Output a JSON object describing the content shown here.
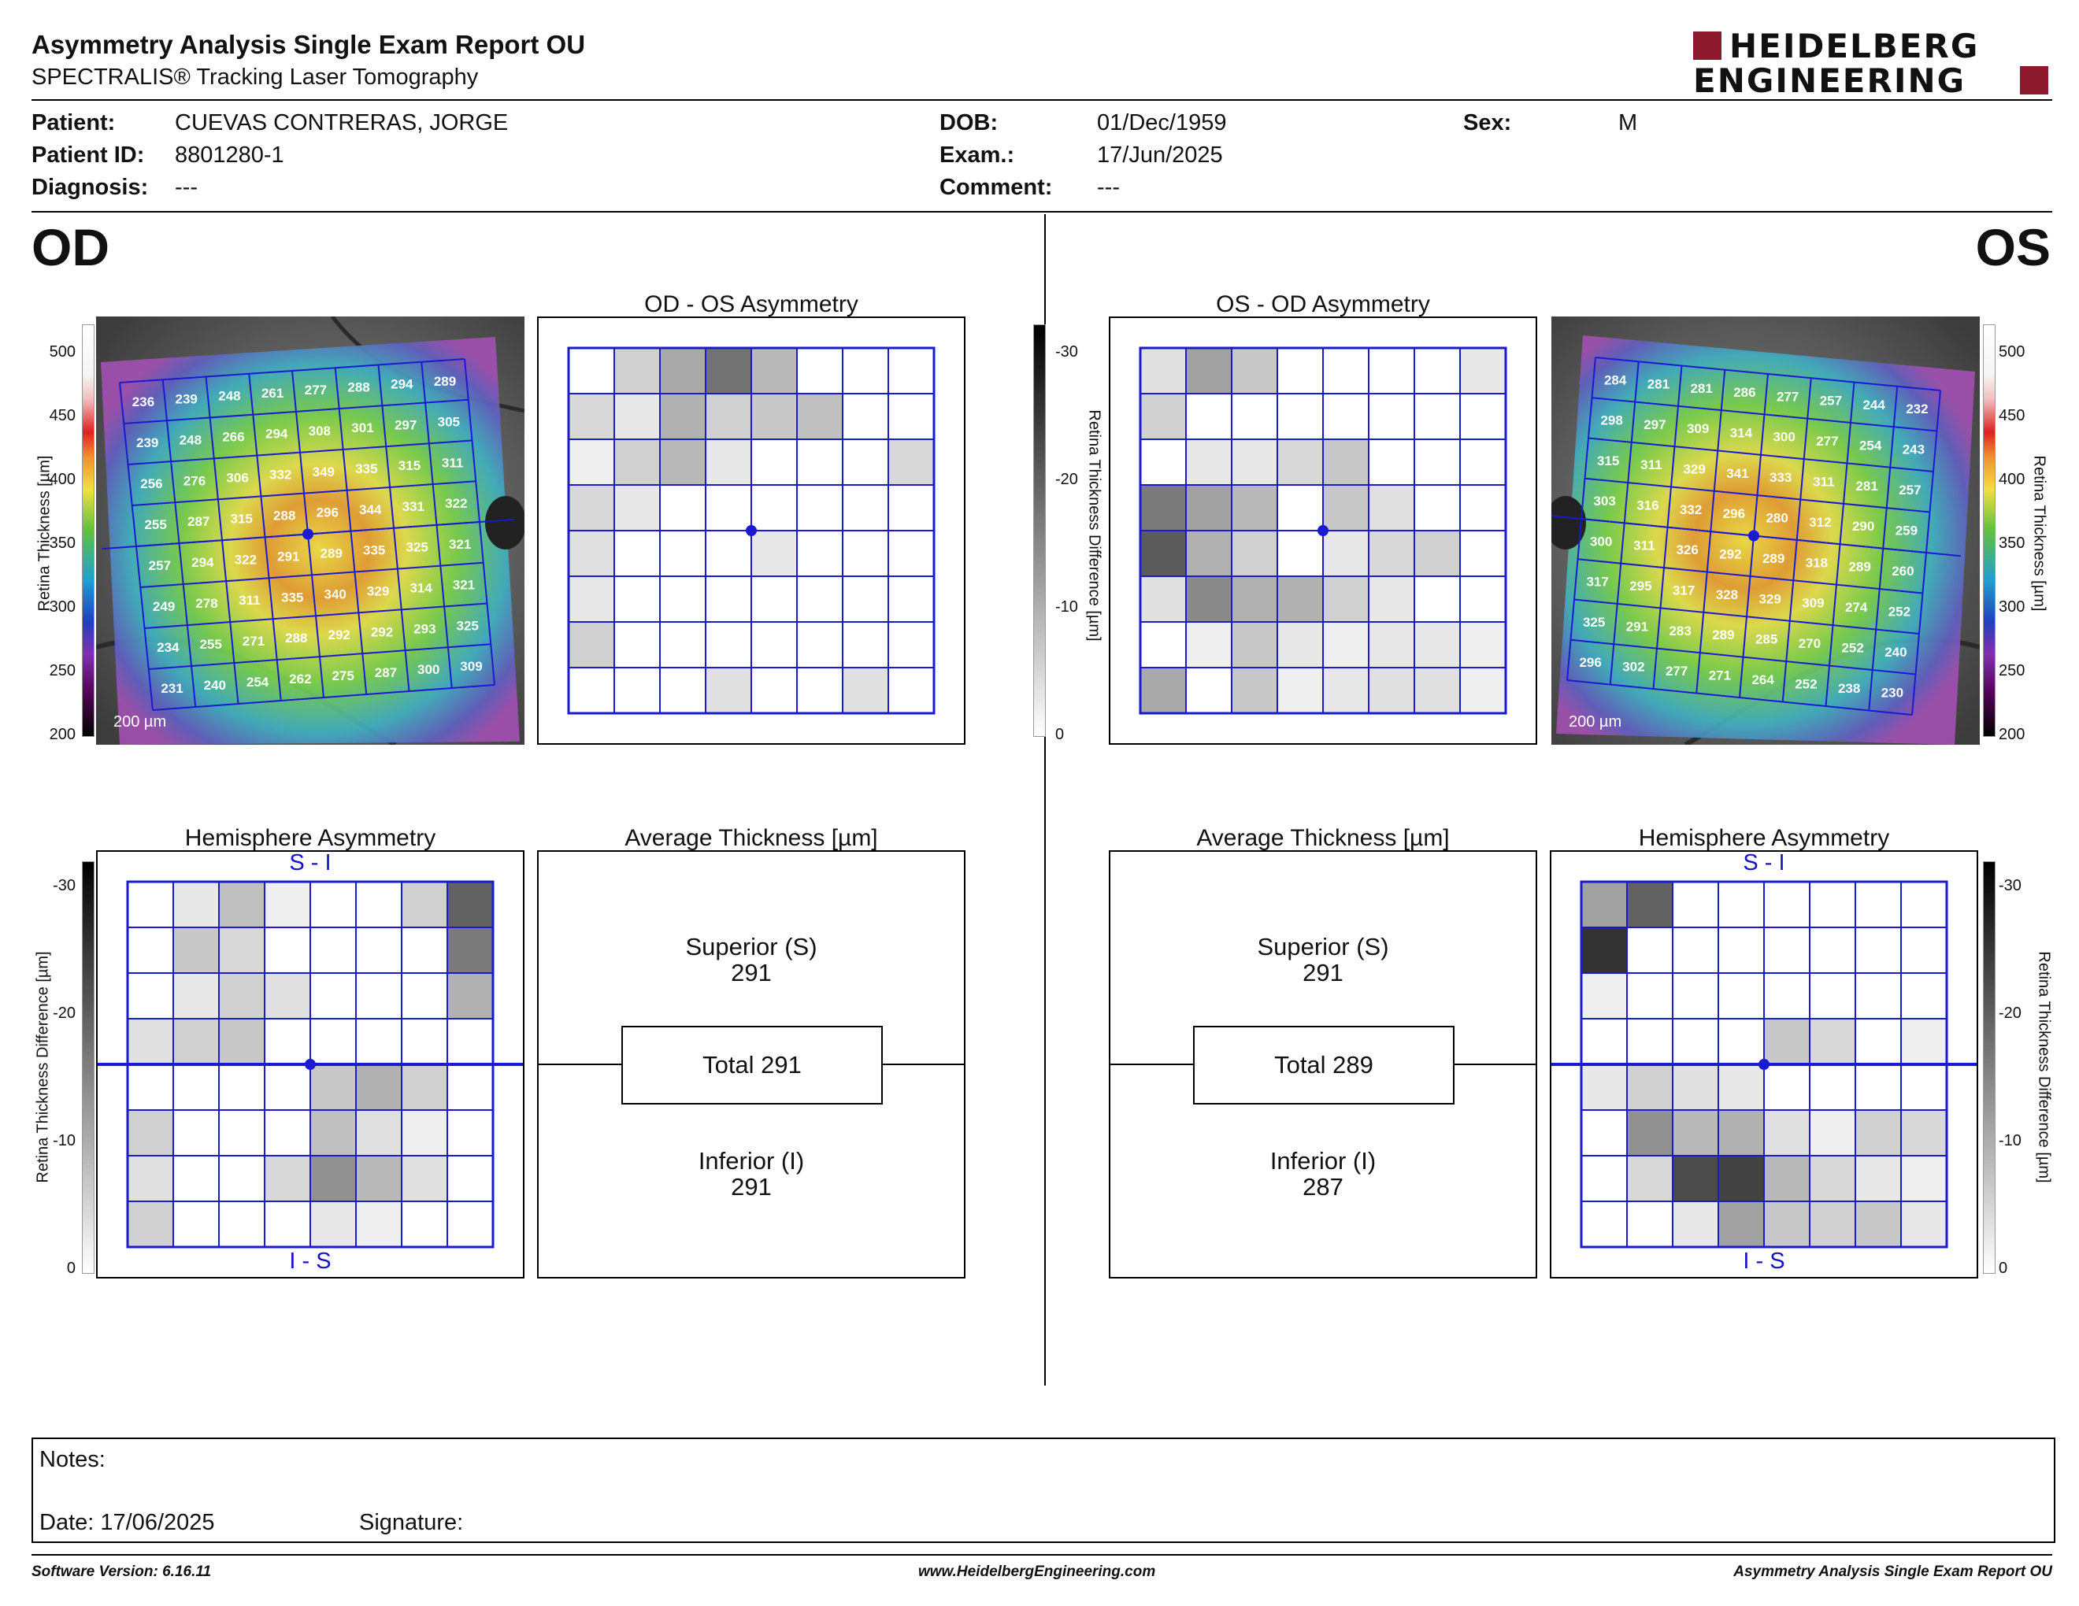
{
  "header": {
    "title": "Asymmetry Analysis Single Exam Report OU",
    "subtitle": "SPECTRALIS® Tracking Laser Tomography",
    "logo_line1": "HEIDELBERG",
    "logo_line2": "ENGINEERING"
  },
  "patient": {
    "patient_label": "Patient:",
    "patient_value": "CUEVAS CONTRERAS, JORGE",
    "id_label": "Patient ID:",
    "id_value": "8801280-1",
    "diagnosis_label": "Diagnosis:",
    "diagnosis_value": "---",
    "dob_label": "DOB:",
    "dob_value": "01/Dec/1959",
    "exam_label": "Exam.:",
    "exam_value": "17/Jun/2025",
    "comment_label": "Comment:",
    "comment_value": "---",
    "sex_label": "Sex:",
    "sex_value": "M"
  },
  "od": {
    "eye_label": "OD",
    "asym_title": "OD - OS Asymmetry",
    "hemi_title": "Hemisphere Asymmetry",
    "avg_title": "Average Thickness [µm]",
    "superior_label": "Superior (S)",
    "superior_value": "291",
    "total_label": "Total 291",
    "inferior_label": "Inferior (I)",
    "inferior_value": "291",
    "hemi_top": "S - I",
    "hemi_bottom": "I - S",
    "scale_label": "200 µm",
    "thickness_grid": [
      [
        236,
        239,
        248,
        261,
        277,
        288,
        294,
        289
      ],
      [
        239,
        248,
        266,
        294,
        308,
        301,
        297,
        305
      ],
      [
        256,
        276,
        306,
        332,
        349,
        335,
        315,
        311
      ],
      [
        255,
        287,
        315,
        288,
        296,
        344,
        331,
        322
      ],
      [
        257,
        294,
        322,
        291,
        289,
        335,
        325,
        321
      ],
      [
        249,
        278,
        311,
        335,
        340,
        329,
        314,
        321
      ],
      [
        234,
        255,
        271,
        288,
        292,
        292,
        293,
        325
      ],
      [
        231,
        240,
        254,
        262,
        275,
        287,
        300,
        309
      ]
    ],
    "asym_grid": [
      [
        0,
        6,
        11,
        18,
        9,
        0,
        0,
        0
      ],
      [
        5,
        3,
        10,
        6,
        7,
        8,
        0,
        0
      ],
      [
        2,
        6,
        9,
        3,
        0,
        0,
        0,
        5
      ],
      [
        5,
        3,
        0,
        0,
        0,
        0,
        0,
        0
      ],
      [
        4,
        0,
        0,
        0,
        3,
        0,
        0,
        0
      ],
      [
        3,
        0,
        0,
        0,
        0,
        0,
        0,
        0
      ],
      [
        6,
        0,
        0,
        0,
        0,
        0,
        0,
        0
      ],
      [
        0,
        0,
        0,
        4,
        0,
        0,
        4,
        0
      ]
    ],
    "hemi_grid": [
      [
        0,
        3,
        8,
        2,
        0,
        0,
        6,
        20
      ],
      [
        0,
        7,
        5,
        0,
        0,
        0,
        0,
        17
      ],
      [
        0,
        3,
        6,
        4,
        0,
        0,
        0,
        10
      ],
      [
        4,
        6,
        7,
        0,
        0,
        0,
        0,
        0
      ],
      [
        0,
        0,
        0,
        0,
        7,
        10,
        6,
        0
      ],
      [
        6,
        0,
        0,
        0,
        8,
        4,
        2,
        0
      ],
      [
        4,
        0,
        0,
        5,
        14,
        9,
        4,
        0
      ],
      [
        6,
        0,
        0,
        0,
        3,
        2,
        0,
        0
      ]
    ]
  },
  "os": {
    "eye_label": "OS",
    "asym_title": "OS - OD Asymmetry",
    "hemi_title": "Hemisphere Asymmetry",
    "avg_title": "Average Thickness [µm]",
    "superior_label": "Superior (S)",
    "superior_value": "291",
    "total_label": "Total 289",
    "inferior_label": "Inferior (I)",
    "inferior_value": "287",
    "hemi_top": "S - I",
    "hemi_bottom": "I - S",
    "scale_label": "200 µm",
    "thickness_grid": [
      [
        284,
        281,
        281,
        286,
        277,
        257,
        244,
        232
      ],
      [
        298,
        297,
        309,
        314,
        300,
        277,
        254,
        243
      ],
      [
        315,
        311,
        329,
        341,
        333,
        311,
        281,
        257
      ],
      [
        303,
        316,
        332,
        296,
        280,
        312,
        290,
        259
      ],
      [
        300,
        311,
        326,
        292,
        289,
        318,
        289,
        260
      ],
      [
        317,
        295,
        317,
        328,
        329,
        309,
        274,
        252
      ],
      [
        325,
        291,
        283,
        289,
        285,
        270,
        252,
        240
      ],
      [
        296,
        302,
        277,
        271,
        264,
        252,
        238,
        230
      ]
    ],
    "asym_grid": [
      [
        4,
        12,
        7,
        0,
        0,
        0,
        0,
        3
      ],
      [
        6,
        0,
        0,
        0,
        0,
        0,
        0,
        0
      ],
      [
        0,
        3,
        3,
        5,
        7,
        0,
        0,
        0
      ],
      [
        17,
        12,
        9,
        0,
        7,
        4,
        0,
        0
      ],
      [
        21,
        10,
        6,
        0,
        3,
        5,
        6,
        0
      ],
      [
        4,
        15,
        10,
        10,
        6,
        3,
        0,
        0
      ],
      [
        0,
        2,
        7,
        3,
        2,
        3,
        3,
        2
      ],
      [
        11,
        0,
        7,
        2,
        3,
        4,
        4,
        2
      ]
    ],
    "hemi_grid": [
      [
        12,
        20,
        0,
        0,
        0,
        0,
        0,
        0
      ],
      [
        26,
        0,
        0,
        0,
        0,
        0,
        0,
        0
      ],
      [
        2,
        0,
        0,
        0,
        0,
        0,
        0,
        0
      ],
      [
        0,
        0,
        0,
        0,
        7,
        5,
        0,
        2
      ],
      [
        3,
        6,
        4,
        3,
        0,
        0,
        0,
        0
      ],
      [
        0,
        14,
        9,
        10,
        4,
        2,
        6,
        5
      ],
      [
        0,
        5,
        23,
        24,
        9,
        5,
        3,
        2
      ],
      [
        0,
        0,
        3,
        12,
        7,
        6,
        7,
        3
      ]
    ]
  },
  "legend": {
    "thickness_ticks": [
      "500",
      "450",
      "400",
      "350",
      "300",
      "250",
      "200"
    ],
    "thickness_axis": "Retina  Thickness [µm]",
    "diff_ticks": [
      "-30",
      "-20",
      "-10",
      "0"
    ],
    "diff_axis": "Retina Thickness Difference [µm]"
  },
  "notes": {
    "notes_label": "Notes:",
    "date_label": "Date: 17/06/2025",
    "signature_label": "Signature:"
  },
  "footer": {
    "software": "Software Version: 6.16.11",
    "website": "www.HeidelbergEngineering.com",
    "report": "Asymmetry Analysis Single Exam Report OU"
  },
  "colors": {
    "grid_blue": "#1a1ad0",
    "logo_red": "#8e1a2e"
  }
}
